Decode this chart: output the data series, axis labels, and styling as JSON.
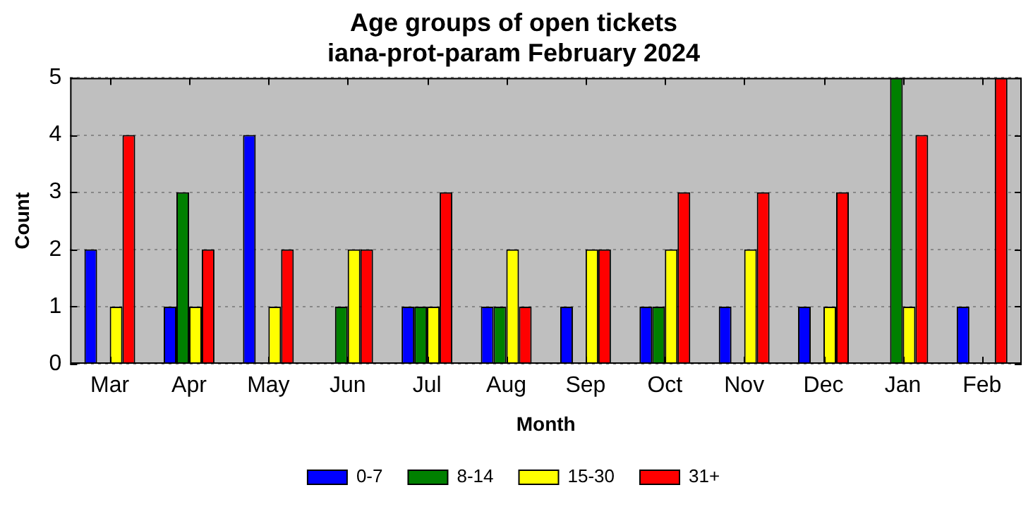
{
  "chart_data": {
    "type": "bar",
    "title": "Age groups of open tickets",
    "subtitle": "iana-prot-param February 2024",
    "xlabel": "Month",
    "ylabel": "Count",
    "categories": [
      "Mar",
      "Apr",
      "May",
      "Jun",
      "Jul",
      "Aug",
      "Sep",
      "Oct",
      "Nov",
      "Dec",
      "Jan",
      "Feb"
    ],
    "series": [
      {
        "name": "0-7",
        "color": "#0000ff",
        "values": [
          2,
          1,
          4,
          0,
          1,
          1,
          1,
          1,
          1,
          1,
          0,
          1
        ]
      },
      {
        "name": "8-14",
        "color": "#008000",
        "values": [
          0,
          3,
          0,
          1,
          1,
          1,
          0,
          1,
          0,
          0,
          5,
          0
        ]
      },
      {
        "name": "15-30",
        "color": "#ffff00",
        "values": [
          1,
          1,
          1,
          2,
          1,
          2,
          2,
          2,
          2,
          1,
          1,
          0
        ]
      },
      {
        "name": "31+",
        "color": "#ff0000",
        "values": [
          4,
          2,
          2,
          2,
          3,
          1,
          2,
          3,
          3,
          3,
          4,
          5
        ]
      }
    ],
    "ylim": [
      0,
      5
    ],
    "yticks": [
      0,
      1,
      2,
      3,
      4,
      5
    ],
    "grid": "y",
    "legend": "bottom"
  }
}
